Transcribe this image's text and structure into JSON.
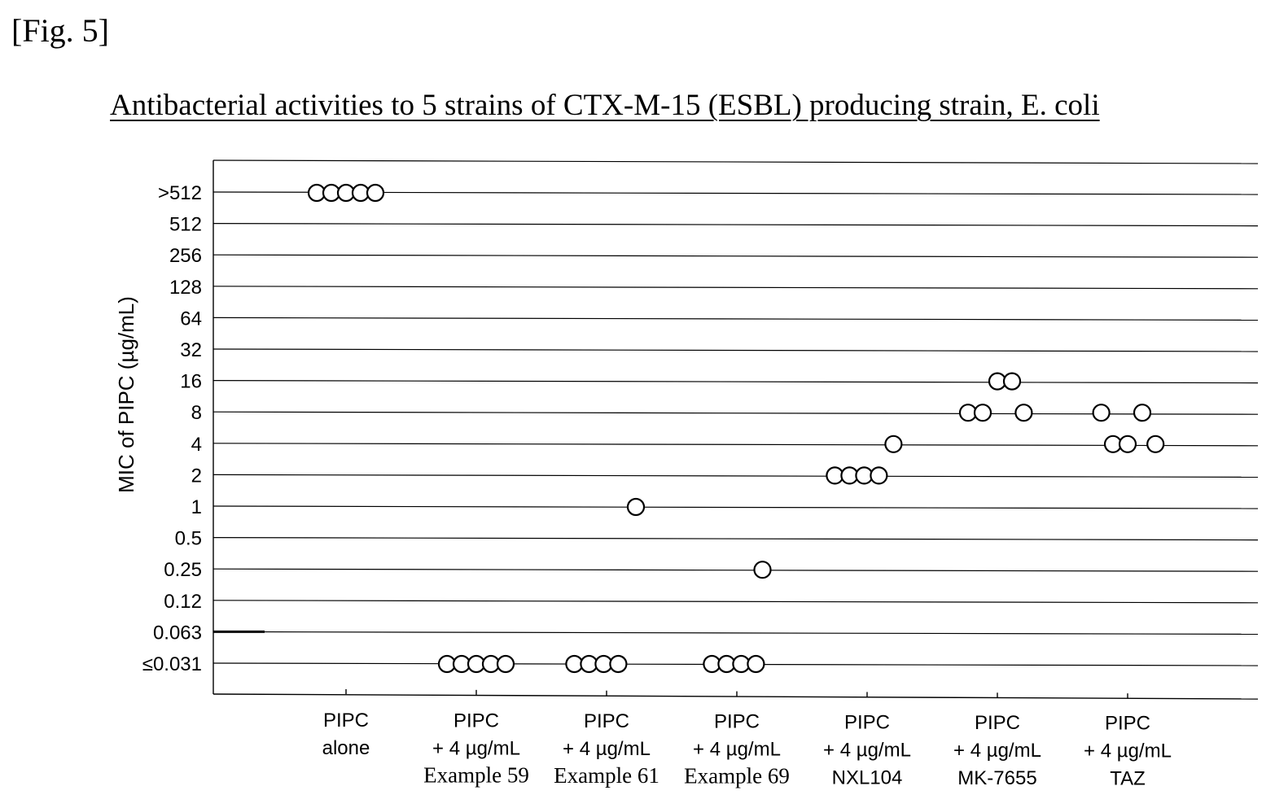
{
  "figure_label": "[Fig. 5]",
  "chart_data": {
    "type": "scatter",
    "title": "Antibacterial activities to 5 strains of CTX-M-15 (ESBL) producing strain, E. coli",
    "ylabel": "MIC of PIPC (µg/mL)",
    "xlabel": "",
    "y_tick_labels": [
      ">512",
      "512",
      "256",
      "128",
      "64",
      "32",
      "16",
      "8",
      "4",
      "2",
      "1",
      "0.5",
      "0.25",
      "0.12",
      "0.063",
      "≤0.031"
    ],
    "categories": [
      [
        "PIPC",
        "alone"
      ],
      [
        "PIPC",
        "+ 4 µg/mL",
        "Example 59"
      ],
      [
        "PIPC",
        "+ 4 µg/mL",
        "Example 61"
      ],
      [
        "PIPC",
        "+ 4 µg/mL",
        "Example 69"
      ],
      [
        "PIPC",
        "+ 4 µg/mL",
        "NXL104"
      ],
      [
        "PIPC",
        "+ 4 µg/mL",
        "MK-7655"
      ],
      [
        "PIPC",
        "+ 4 µg/mL",
        "TAZ"
      ]
    ],
    "points": [
      {
        "category": 0,
        "mic": ">512",
        "count": 5
      },
      {
        "category": 1,
        "mic": "≤0.031",
        "count": 5
      },
      {
        "category": 2,
        "mic": "1",
        "count": 1
      },
      {
        "category": 2,
        "mic": "≤0.031",
        "count": 4
      },
      {
        "category": 3,
        "mic": "0.25",
        "count": 1
      },
      {
        "category": 3,
        "mic": "≤0.031",
        "count": 4
      },
      {
        "category": 4,
        "mic": "4",
        "count": 1
      },
      {
        "category": 4,
        "mic": "2",
        "count": 4
      },
      {
        "category": 5,
        "mic": "16",
        "count": 2
      },
      {
        "category": 5,
        "mic": "8",
        "count": 3
      },
      {
        "category": 6,
        "mic": "8",
        "count": 2
      },
      {
        "category": 6,
        "mic": "4",
        "count": 3
      }
    ],
    "grid": true,
    "marker": "open-circle",
    "colors": {
      "line": "#000000",
      "marker_fill": "#ffffff",
      "marker_stroke": "#000000"
    }
  }
}
